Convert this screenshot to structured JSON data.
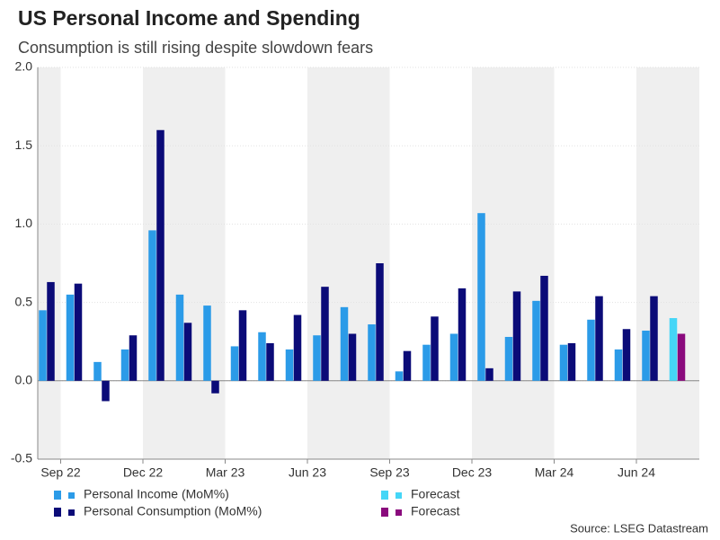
{
  "chart_data": {
    "type": "bar",
    "title": "US Personal Income and Spending",
    "subtitle": "Consumption is still rising despite slowdown fears",
    "source": "Source: LSEG Datastream",
    "categories": [
      "Sep 22",
      null,
      null,
      "Dec 22",
      null,
      null,
      "Mar 23",
      null,
      null,
      "Jun 23",
      null,
      null,
      "Sep 23",
      null,
      null,
      "Dec 23",
      null,
      null,
      "Mar 24",
      null,
      null,
      "Jun 24",
      null,
      null
    ],
    "series": [
      {
        "name": "Personal Income (MoM%)",
        "color": "#2b9be8",
        "values": [
          0.45,
          0.55,
          0.12,
          0.2,
          0.96,
          0.55,
          0.48,
          0.22,
          0.31,
          0.2,
          0.29,
          0.47,
          0.36,
          0.06,
          0.23,
          0.3,
          1.07,
          0.28,
          0.51,
          0.23,
          0.39,
          0.2,
          0.32,
          null
        ]
      },
      {
        "name": "Personal Consumption (MoM%)",
        "color": "#0b0b78",
        "values": [
          0.63,
          0.62,
          -0.13,
          0.29,
          1.6,
          0.37,
          -0.08,
          0.45,
          0.24,
          0.42,
          0.6,
          0.3,
          0.75,
          0.19,
          0.41,
          0.59,
          0.08,
          0.57,
          0.67,
          0.24,
          0.54,
          0.33,
          0.54,
          null
        ]
      },
      {
        "name": "Forecast",
        "color": "#45d6f7",
        "values": [
          null,
          null,
          null,
          null,
          null,
          null,
          null,
          null,
          null,
          null,
          null,
          null,
          null,
          null,
          null,
          null,
          null,
          null,
          null,
          null,
          null,
          null,
          null,
          0.4
        ]
      },
      {
        "name": "Forecast",
        "color": "#8a0a7d",
        "values": [
          null,
          null,
          null,
          null,
          null,
          null,
          null,
          null,
          null,
          null,
          null,
          null,
          null,
          null,
          null,
          null,
          null,
          null,
          null,
          null,
          null,
          null,
          null,
          0.3
        ]
      }
    ],
    "ylim": [
      -0.5,
      2
    ],
    "yticks": [
      {
        "value": -0.5,
        "label": "-0.5"
      },
      {
        "value": 0,
        "label": "0.0"
      },
      {
        "value": 0.5,
        "label": "0.5"
      },
      {
        "value": 1,
        "label": "1.0"
      },
      {
        "value": 1.5,
        "label": "1.5"
      },
      {
        "value": 2,
        "label": "2.0"
      }
    ],
    "grid": true
  }
}
